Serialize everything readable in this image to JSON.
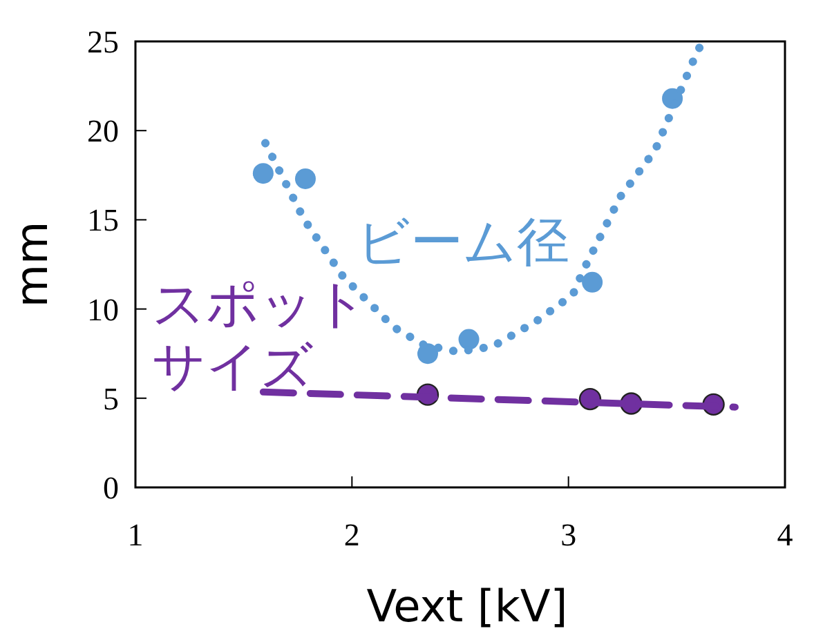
{
  "chart_data": {
    "type": "scatter",
    "xlabel": "Vext [kV]",
    "ylabel": "mm",
    "xlim": [
      1,
      4
    ],
    "xticks": [
      1,
      2,
      3,
      4
    ],
    "ylim": [
      0,
      25
    ],
    "yticks": [
      0,
      5,
      10,
      15,
      20,
      25
    ],
    "grid": false,
    "series": [
      {
        "name": "ビーム径",
        "color": "#5b9bd5",
        "marker": "circle",
        "x": [
          1.59,
          1.785,
          2.35,
          2.54,
          3.11,
          3.48
        ],
        "values": [
          17.6,
          17.3,
          7.5,
          8.3,
          11.5,
          21.8
        ]
      },
      {
        "color": "#5b9bd5",
        "type": "line",
        "line_style": "dotted",
        "marker": "none",
        "x": [
          1.6,
          1.78,
          1.96,
          2.13,
          2.19,
          2.33,
          2.49,
          2.65,
          2.85,
          3.02,
          3.07,
          3.24,
          3.4,
          3.59,
          3.62
        ],
        "values": [
          19.3,
          15.0,
          11.8,
          9.75,
          9.0,
          8.0,
          7.6,
          7.9,
          9.3,
          10.8,
          12.2,
          16.3,
          18.9,
          24.3,
          25
        ]
      },
      {
        "name": "スポットサイズ",
        "color": "#7030a0",
        "marker": "circle",
        "x": [
          2.35,
          3.1,
          3.29,
          3.67
        ],
        "values": [
          5.2,
          4.95,
          4.7,
          4.65
        ]
      },
      {
        "color": "#7030a0",
        "type": "line",
        "line_style": "dashed",
        "marker": "none",
        "x": [
          1.59,
          3.77
        ],
        "values": [
          5.35,
          4.5
        ]
      }
    ]
  }
}
